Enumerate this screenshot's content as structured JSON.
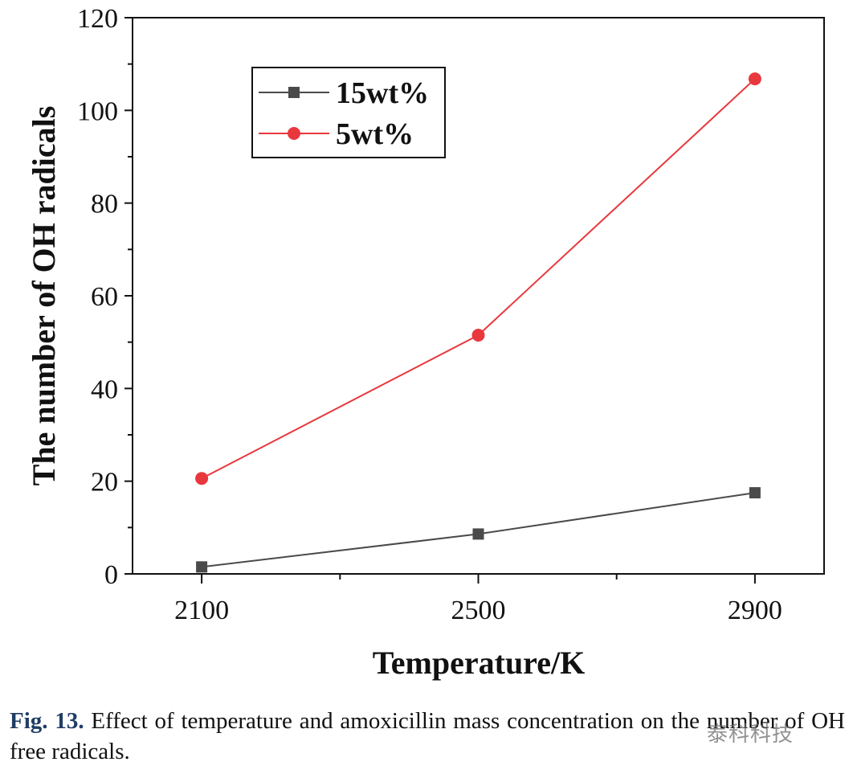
{
  "chart_data": {
    "type": "line",
    "title": "",
    "xlabel": "Temperature/K",
    "ylabel": "The number of OH radicals",
    "x": [
      2100,
      2500,
      2900
    ],
    "x_tick_labels": [
      "2100",
      "2500",
      "2900"
    ],
    "xlim": [
      2000,
      3000
    ],
    "ylim": [
      0,
      120
    ],
    "y_ticks": [
      0,
      20,
      40,
      60,
      80,
      100,
      120
    ],
    "y_tick_labels": [
      "0",
      "20",
      "40",
      "60",
      "80",
      "100",
      "120"
    ],
    "grid": false,
    "legend_position": "top-left",
    "series": [
      {
        "name": "15wt%",
        "values": [
          1.5,
          8.6,
          17.5
        ],
        "color": "#4a4a4a",
        "marker": "square"
      },
      {
        "name": "5wt%",
        "values": [
          20.6,
          51.5,
          106.8
        ],
        "color": "#e8383d",
        "marker": "circle"
      }
    ]
  },
  "caption": {
    "label": "Fig. 13.",
    "text": "Effect of temperature and amoxicillin mass concentration on the number of OH free radicals."
  },
  "watermark": "泰科科技"
}
